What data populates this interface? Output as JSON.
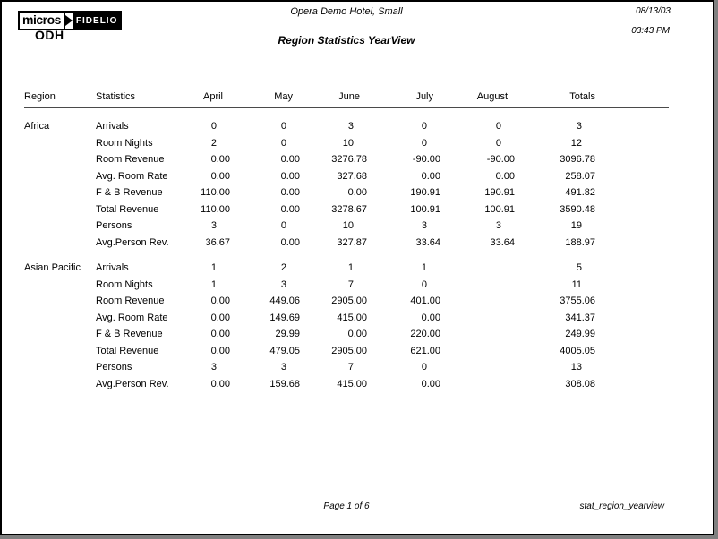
{
  "page": {
    "logo": {
      "micros": "micros",
      "fidelio": "FIDELIO"
    },
    "property_code": "ODH",
    "hotel_name": "Opera Demo Hotel, Small",
    "report_title": "Region Statistics YearView",
    "date": "08/13/03",
    "time": "03:43 PM",
    "footer": {
      "page_info": "Page 1 of 6",
      "report_file": "stat_region_yearview"
    }
  },
  "table": {
    "columns": [
      "Region",
      "Statistics",
      "April",
      "May",
      "June",
      "July",
      "August",
      "Totals"
    ],
    "sections": [
      {
        "region": "Africa",
        "rows": [
          {
            "statistic": "Arrivals",
            "values": [
              "0",
              "0",
              "3",
              "0",
              "0",
              "3"
            ]
          },
          {
            "statistic": "Room Nights",
            "values": [
              "2",
              "0",
              "10",
              "0",
              "0",
              "12"
            ]
          },
          {
            "statistic": "Room Revenue",
            "values": [
              "0.00",
              "0.00",
              "3276.78",
              "-90.00",
              "-90.00",
              "3096.78"
            ]
          },
          {
            "statistic": "Avg. Room Rate",
            "values": [
              "0.00",
              "0.00",
              "327.68",
              "0.00",
              "0.00",
              "258.07"
            ]
          },
          {
            "statistic": "F & B Revenue",
            "values": [
              "110.00",
              "0.00",
              "0.00",
              "190.91",
              "190.91",
              "491.82"
            ]
          },
          {
            "statistic": "Total Revenue",
            "values": [
              "110.00",
              "0.00",
              "3278.67",
              "100.91",
              "100.91",
              "3590.48"
            ]
          },
          {
            "statistic": "Persons",
            "values": [
              "3",
              "0",
              "10",
              "3",
              "3",
              "19"
            ]
          },
          {
            "statistic": "Avg.Person Rev.",
            "values": [
              "36.67",
              "0.00",
              "327.87",
              "33.64",
              "33.64",
              "188.97"
            ]
          }
        ]
      },
      {
        "region": "Asian Pacific",
        "rows": [
          {
            "statistic": "Arrivals",
            "values": [
              "1",
              "2",
              "1",
              "1",
              "",
              "5"
            ]
          },
          {
            "statistic": "Room Nights",
            "values": [
              "1",
              "3",
              "7",
              "0",
              "",
              "11"
            ]
          },
          {
            "statistic": "Room Revenue",
            "values": [
              "0.00",
              "449.06",
              "2905.00",
              "401.00",
              "",
              "3755.06"
            ]
          },
          {
            "statistic": "Avg. Room Rate",
            "values": [
              "0.00",
              "149.69",
              "415.00",
              "0.00",
              "",
              "341.37"
            ]
          },
          {
            "statistic": "F & B Revenue",
            "values": [
              "0.00",
              "29.99",
              "0.00",
              "220.00",
              "",
              "249.99"
            ]
          },
          {
            "statistic": "Total Revenue",
            "values": [
              "0.00",
              "479.05",
              "2905.00",
              "621.00",
              "",
              "4005.05"
            ]
          },
          {
            "statistic": "Persons",
            "values": [
              "3",
              "3",
              "7",
              "0",
              "",
              "13"
            ]
          },
          {
            "statistic": "Avg.Person Rev.",
            "values": [
              "0.00",
              "159.68",
              "415.00",
              "0.00",
              "",
              "308.08"
            ]
          }
        ]
      }
    ]
  }
}
